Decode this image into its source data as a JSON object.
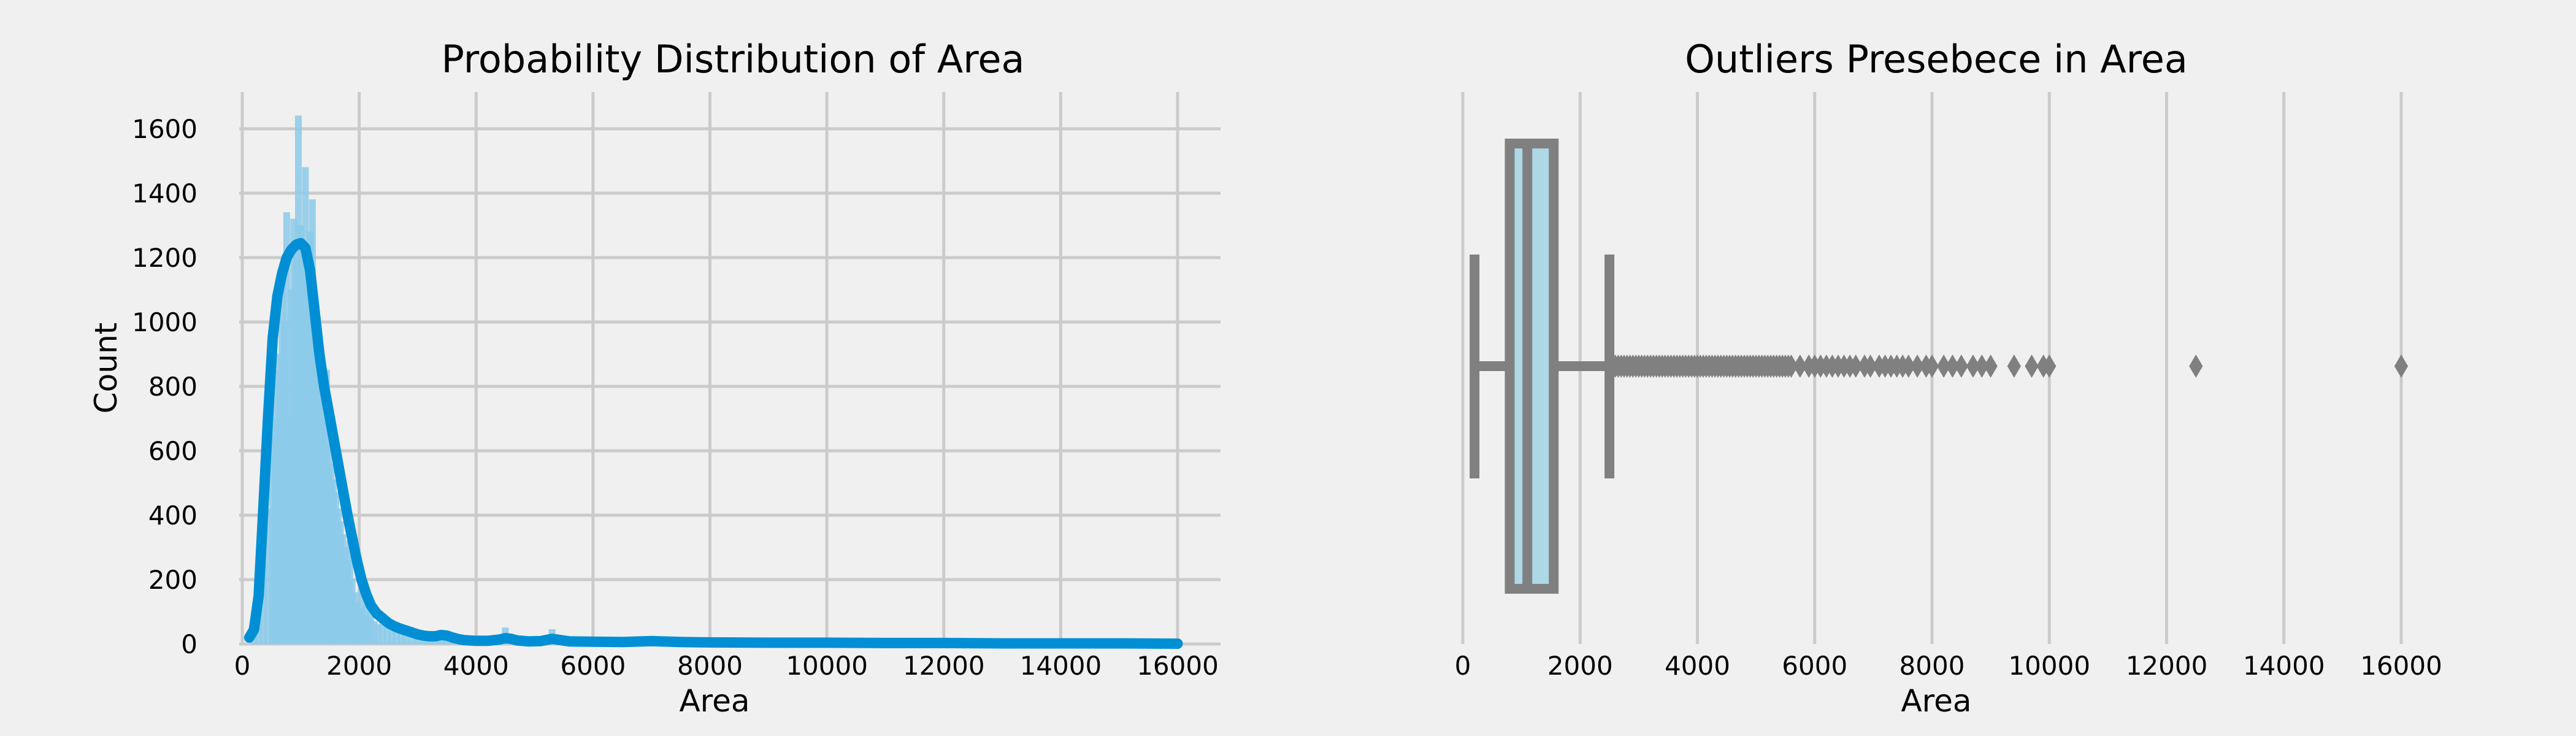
{
  "chart_data": [
    {
      "type": "histogram",
      "title": "Probability Distribution of Area",
      "xlabel": "Area",
      "ylabel": "Count",
      "xlim": [
        0,
        16000
      ],
      "ylim": [
        0,
        1700
      ],
      "xticks": [
        0,
        2000,
        4000,
        6000,
        8000,
        10000,
        12000,
        14000,
        16000
      ],
      "yticks": [
        0,
        200,
        400,
        600,
        800,
        1000,
        1200,
        1400,
        1600
      ],
      "grid": true,
      "colors": {
        "bars": "#8ccbea",
        "kde": "#008fd5"
      },
      "bins": [
        {
          "x": 200,
          "count": 30
        },
        {
          "x": 280,
          "count": 120
        },
        {
          "x": 360,
          "count": 250
        },
        {
          "x": 440,
          "count": 420
        },
        {
          "x": 520,
          "count": 650
        },
        {
          "x": 560,
          "count": 850
        },
        {
          "x": 600,
          "count": 700
        },
        {
          "x": 640,
          "count": 900
        },
        {
          "x": 680,
          "count": 1100
        },
        {
          "x": 720,
          "count": 1000
        },
        {
          "x": 760,
          "count": 1340
        },
        {
          "x": 800,
          "count": 700
        },
        {
          "x": 840,
          "count": 1100
        },
        {
          "x": 880,
          "count": 1320
        },
        {
          "x": 920,
          "count": 1200
        },
        {
          "x": 960,
          "count": 1640
        },
        {
          "x": 1000,
          "count": 1300
        },
        {
          "x": 1040,
          "count": 1250
        },
        {
          "x": 1080,
          "count": 1480
        },
        {
          "x": 1120,
          "count": 1150
        },
        {
          "x": 1160,
          "count": 1280
        },
        {
          "x": 1200,
          "count": 1380
        },
        {
          "x": 1240,
          "count": 1000
        },
        {
          "x": 1280,
          "count": 900
        },
        {
          "x": 1320,
          "count": 820
        },
        {
          "x": 1360,
          "count": 760
        },
        {
          "x": 1400,
          "count": 700
        },
        {
          "x": 1440,
          "count": 850
        },
        {
          "x": 1480,
          "count": 620
        },
        {
          "x": 1520,
          "count": 560
        },
        {
          "x": 1560,
          "count": 510
        },
        {
          "x": 1600,
          "count": 470
        },
        {
          "x": 1640,
          "count": 420
        },
        {
          "x": 1680,
          "count": 380
        },
        {
          "x": 1720,
          "count": 340
        },
        {
          "x": 1760,
          "count": 300
        },
        {
          "x": 1800,
          "count": 260
        },
        {
          "x": 1840,
          "count": 320
        },
        {
          "x": 1880,
          "count": 200
        },
        {
          "x": 1920,
          "count": 160
        },
        {
          "x": 1960,
          "count": 130
        },
        {
          "x": 2000,
          "count": 110
        },
        {
          "x": 2040,
          "count": 170
        },
        {
          "x": 2080,
          "count": 90
        },
        {
          "x": 2120,
          "count": 120
        },
        {
          "x": 2160,
          "count": 80
        },
        {
          "x": 2200,
          "count": 100
        },
        {
          "x": 2260,
          "count": 70
        },
        {
          "x": 2320,
          "count": 60
        },
        {
          "x": 2400,
          "count": 90
        },
        {
          "x": 2480,
          "count": 50
        },
        {
          "x": 2560,
          "count": 40
        },
        {
          "x": 2640,
          "count": 60
        },
        {
          "x": 2720,
          "count": 35
        },
        {
          "x": 2800,
          "count": 30
        },
        {
          "x": 2900,
          "count": 25
        },
        {
          "x": 3000,
          "count": 40
        },
        {
          "x": 3100,
          "count": 20
        },
        {
          "x": 3200,
          "count": 18
        },
        {
          "x": 3300,
          "count": 15
        },
        {
          "x": 3400,
          "count": 25
        },
        {
          "x": 3500,
          "count": 12
        },
        {
          "x": 3600,
          "count": 10
        },
        {
          "x": 3800,
          "count": 8
        },
        {
          "x": 4000,
          "count": 12
        },
        {
          "x": 4200,
          "count": 6
        },
        {
          "x": 4400,
          "count": 8
        },
        {
          "x": 4500,
          "count": 50
        },
        {
          "x": 4600,
          "count": 10
        },
        {
          "x": 4800,
          "count": 6
        },
        {
          "x": 5000,
          "count": 8
        },
        {
          "x": 5300,
          "count": 45
        },
        {
          "x": 5500,
          "count": 6
        },
        {
          "x": 6000,
          "count": 5
        },
        {
          "x": 6500,
          "count": 4
        },
        {
          "x": 7000,
          "count": 8
        },
        {
          "x": 7500,
          "count": 3
        },
        {
          "x": 8000,
          "count": 3
        },
        {
          "x": 9000,
          "count": 2
        },
        {
          "x": 10000,
          "count": 3
        },
        {
          "x": 12500,
          "count": 1
        },
        {
          "x": 16000,
          "count": 1
        }
      ],
      "kde": [
        [
          120,
          20
        ],
        [
          200,
          45
        ],
        [
          280,
          150
        ],
        [
          360,
          420
        ],
        [
          440,
          700
        ],
        [
          520,
          950
        ],
        [
          600,
          1080
        ],
        [
          680,
          1150
        ],
        [
          760,
          1200
        ],
        [
          840,
          1225
        ],
        [
          920,
          1240
        ],
        [
          1000,
          1245
        ],
        [
          1080,
          1230
        ],
        [
          1160,
          1160
        ],
        [
          1240,
          1030
        ],
        [
          1320,
          900
        ],
        [
          1400,
          800
        ],
        [
          1480,
          720
        ],
        [
          1560,
          640
        ],
        [
          1640,
          560
        ],
        [
          1720,
          480
        ],
        [
          1800,
          400
        ],
        [
          1880,
          330
        ],
        [
          1960,
          260
        ],
        [
          2040,
          200
        ],
        [
          2120,
          155
        ],
        [
          2200,
          120
        ],
        [
          2300,
          95
        ],
        [
          2400,
          80
        ],
        [
          2500,
          65
        ],
        [
          2600,
          55
        ],
        [
          2700,
          48
        ],
        [
          2800,
          42
        ],
        [
          2900,
          36
        ],
        [
          3000,
          30
        ],
        [
          3100,
          26
        ],
        [
          3200,
          24
        ],
        [
          3300,
          24
        ],
        [
          3400,
          28
        ],
        [
          3500,
          26
        ],
        [
          3600,
          20
        ],
        [
          3700,
          15
        ],
        [
          3800,
          12
        ],
        [
          4000,
          10
        ],
        [
          4200,
          10
        ],
        [
          4400,
          14
        ],
        [
          4500,
          18
        ],
        [
          4600,
          16
        ],
        [
          4700,
          11
        ],
        [
          4900,
          8
        ],
        [
          5100,
          9
        ],
        [
          5300,
          16
        ],
        [
          5450,
          12
        ],
        [
          5600,
          8
        ],
        [
          6000,
          7
        ],
        [
          6500,
          6
        ],
        [
          7000,
          9
        ],
        [
          7500,
          6
        ],
        [
          8000,
          5
        ],
        [
          9000,
          4
        ],
        [
          10000,
          4
        ],
        [
          11000,
          3
        ],
        [
          12000,
          3
        ],
        [
          13000,
          2
        ],
        [
          14000,
          2
        ],
        [
          15000,
          2
        ],
        [
          16000,
          1
        ]
      ]
    },
    {
      "type": "boxplot",
      "title": "Outliers Presebece in Area",
      "xlabel": "Area",
      "xlim": [
        0,
        16000
      ],
      "xticks": [
        0,
        2000,
        4000,
        6000,
        8000,
        10000,
        12000,
        14000,
        16000
      ],
      "grid": true,
      "colors": {
        "box_fill": "#add8e6",
        "line": "#808080"
      },
      "whisker_low": 200,
      "q1": 800,
      "median": 1100,
      "q3": 1550,
      "whisker_high": 2500,
      "outliers": [
        2550,
        2600,
        2650,
        2700,
        2750,
        2800,
        2850,
        2900,
        2950,
        3000,
        3050,
        3100,
        3150,
        3200,
        3250,
        3300,
        3350,
        3400,
        3450,
        3500,
        3550,
        3600,
        3650,
        3700,
        3750,
        3800,
        3850,
        3900,
        3950,
        4000,
        4050,
        4100,
        4150,
        4200,
        4250,
        4300,
        4350,
        4400,
        4450,
        4500,
        4550,
        4600,
        4650,
        4700,
        4750,
        4800,
        4850,
        4900,
        4950,
        5000,
        5050,
        5100,
        5150,
        5200,
        5250,
        5300,
        5350,
        5400,
        5450,
        5500,
        5550,
        5600,
        5750,
        5900,
        6000,
        6100,
        6200,
        6300,
        6400,
        6500,
        6600,
        6700,
        6850,
        6950,
        7100,
        7200,
        7300,
        7400,
        7500,
        7600,
        7750,
        7900,
        8000,
        8200,
        8350,
        8500,
        8700,
        8850,
        9000,
        9400,
        9700,
        9900,
        10000,
        12500,
        16000
      ]
    }
  ]
}
